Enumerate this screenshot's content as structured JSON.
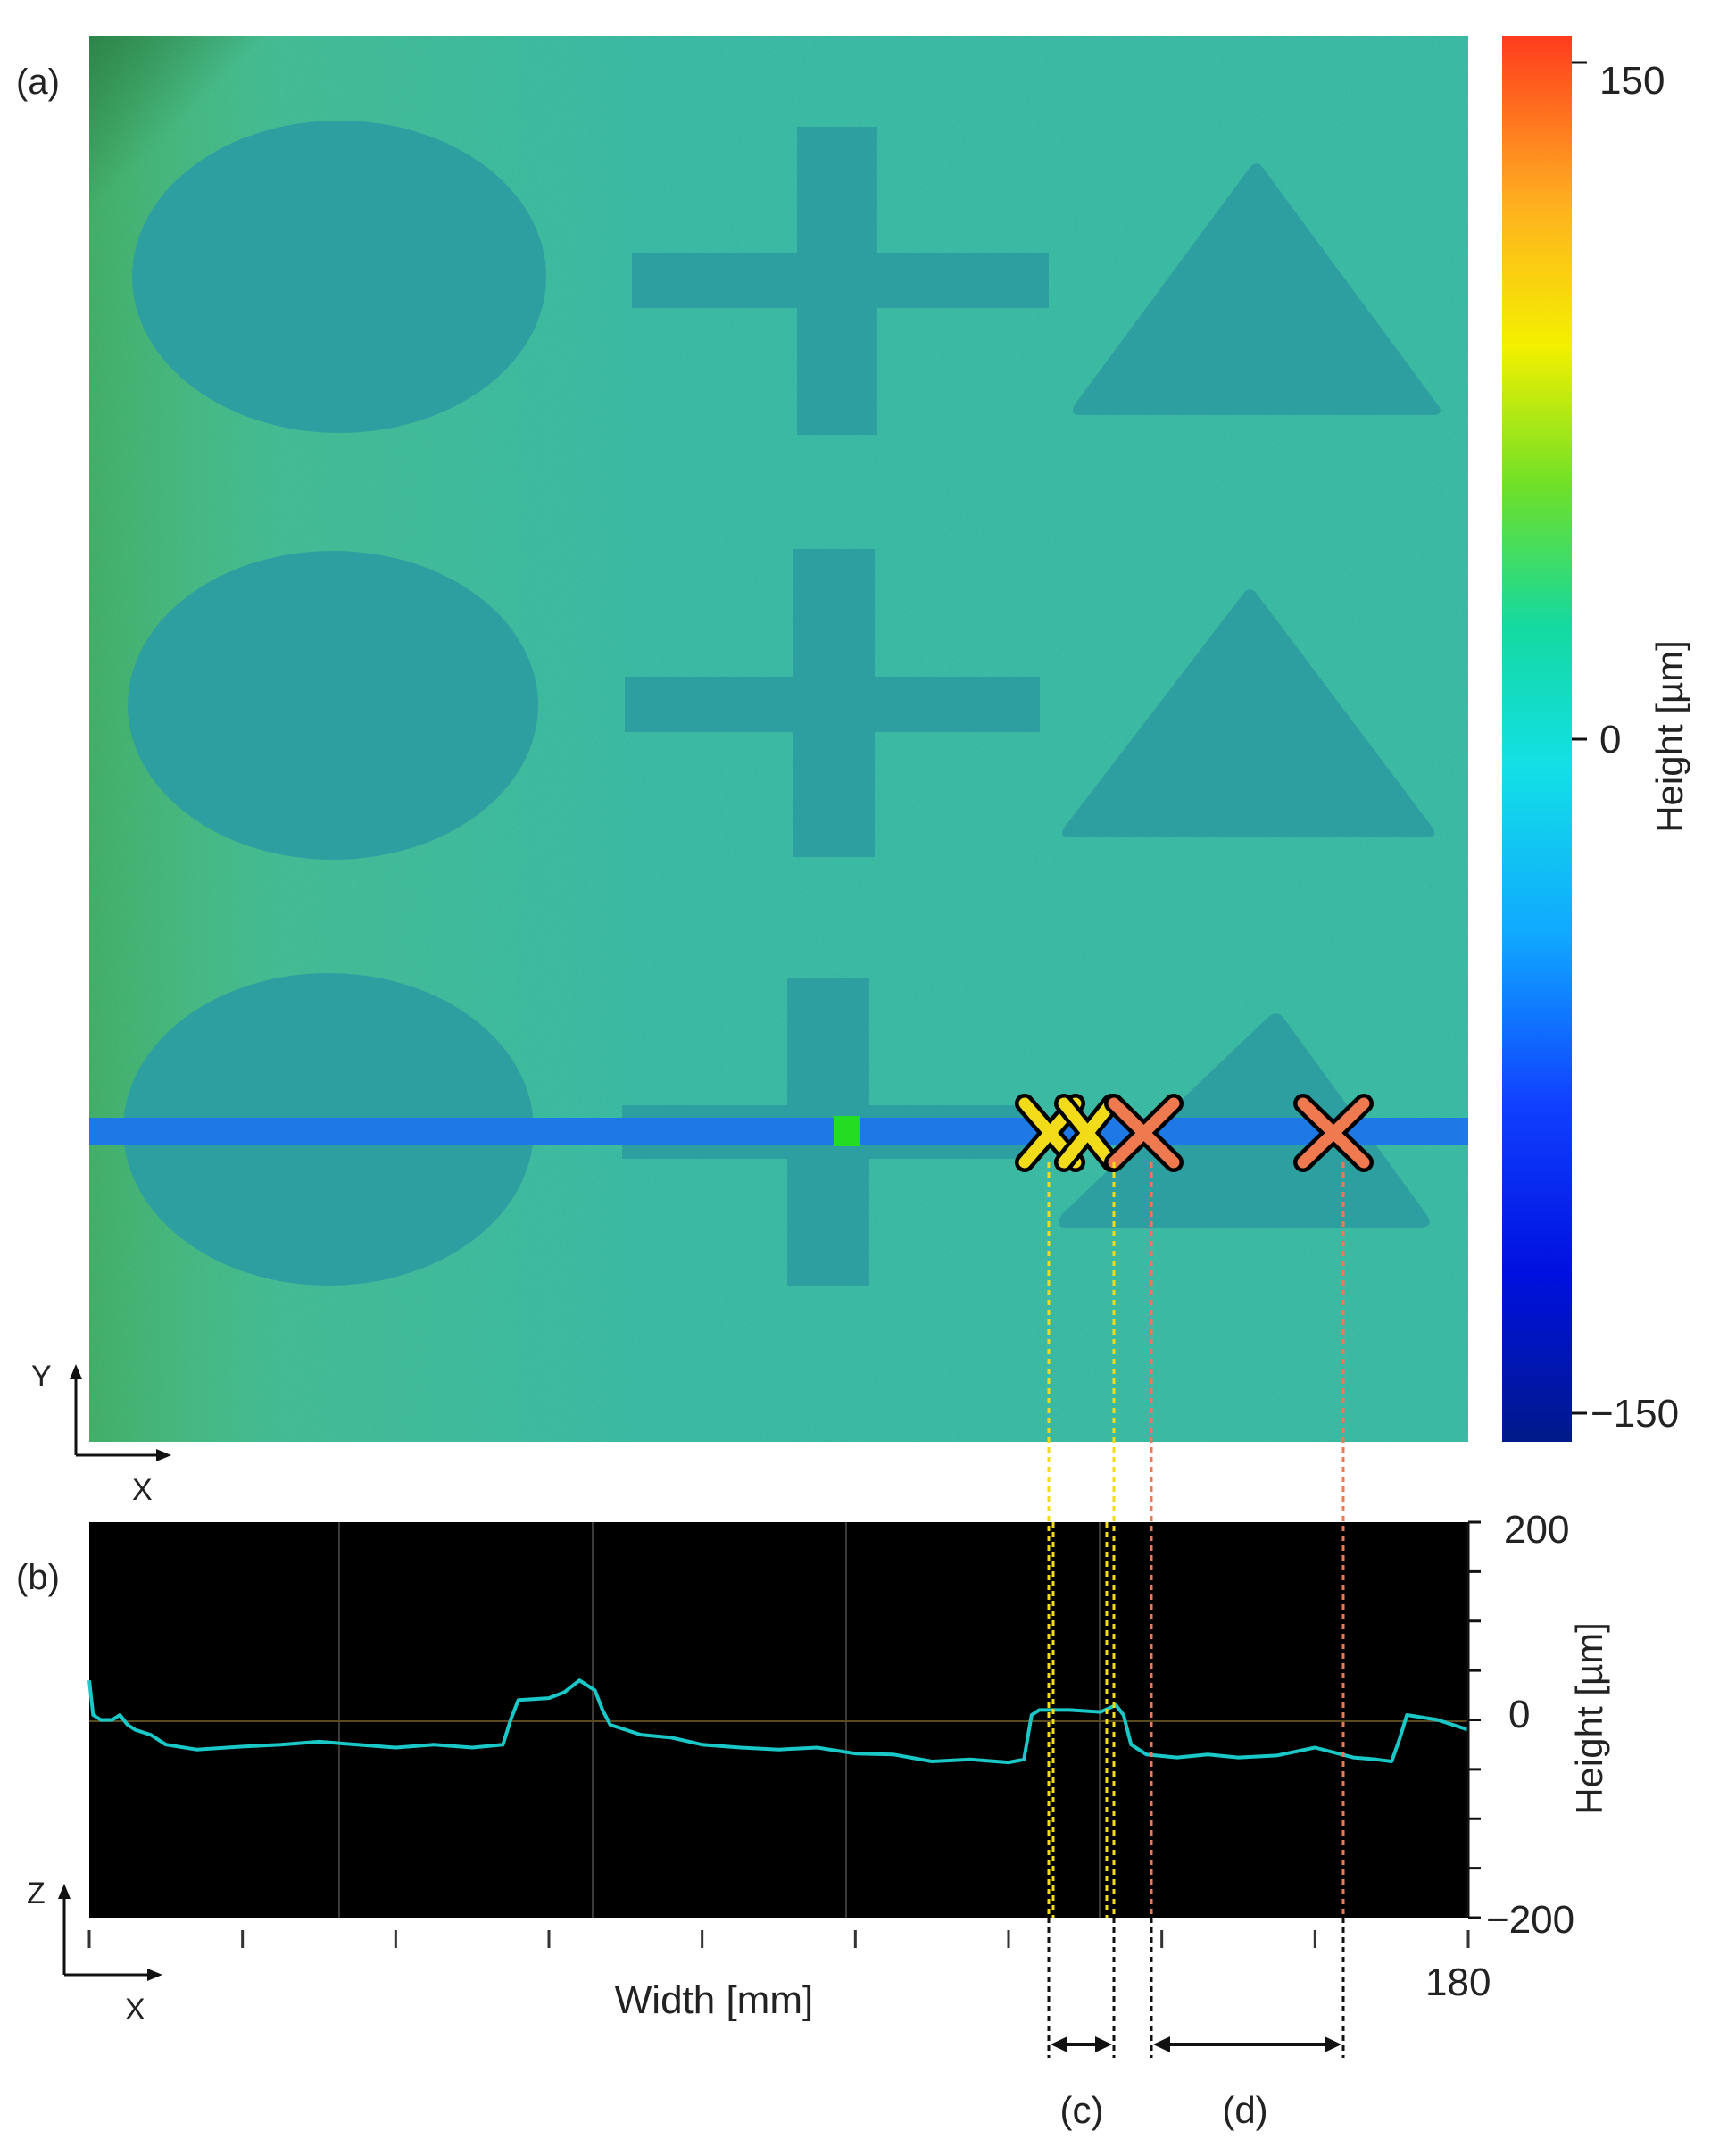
{
  "panel_a": {
    "label": "(a)",
    "axis_y": "Y",
    "axis_x": "X",
    "colorbar": {
      "label": "Height [µm]",
      "ticks": [
        "150",
        "0",
        "−150"
      ],
      "tick_values": [
        150,
        0,
        -150
      ],
      "range": [
        -150,
        150
      ],
      "colors": [
        "#ff3b1e",
        "#ffb020",
        "#f4f000",
        "#6fe028",
        "#14d9a0",
        "#12e0e6",
        "#10a8ff",
        "#1040ff",
        "#0010e0",
        "#001a8a"
      ]
    }
  },
  "panel_b": {
    "label": "(b)",
    "axis_z": "Z",
    "axis_x": "X",
    "xlabel": "Width [mm]",
    "x_end_tick": "180",
    "ylabel": "Height [µm]",
    "y_ticks": [
      "200",
      "0",
      "−200"
    ],
    "span_labels": [
      "(c)",
      "(d)"
    ]
  },
  "colors": {
    "background_plot": "#000000",
    "profile_line": "#1ac8c8",
    "scan_line": "#1e78e6",
    "yellow_marker": "#f2dc1a",
    "orange_marker": "#f07a50",
    "green_marker": "#22dd22"
  },
  "chart_data": [
    {
      "type": "heatmap",
      "description_source": "panel (a)",
      "colorbar_range": [
        -150,
        150
      ],
      "ylabel": "Height [µm]"
    },
    {
      "type": "line",
      "xlabel": "Width [mm]",
      "ylabel": "Height [µm]",
      "xlim": [
        0,
        180
      ],
      "ylim": [
        -200,
        200
      ],
      "grid": false,
      "series": [
        {
          "x": [
            0,
            0.5,
            1.5,
            3,
            4,
            5,
            6,
            8,
            10,
            14,
            20,
            25,
            30,
            35,
            40,
            45,
            50,
            54,
            55,
            56,
            60,
            62,
            64,
            66,
            67,
            68,
            72,
            76,
            80,
            85,
            90,
            95,
            100,
            105,
            110,
            115,
            120,
            122,
            123,
            124,
            128,
            132,
            134,
            135,
            136,
            138,
            142,
            146,
            150,
            155,
            160,
            165,
            168,
            170,
            171,
            172,
            176,
            180
          ],
          "y": [
            40,
            5,
            0,
            0,
            5,
            -5,
            -10,
            -15,
            -25,
            -30,
            -27,
            -25,
            -22,
            -25,
            -28,
            -25,
            -28,
            -25,
            0,
            20,
            22,
            28,
            40,
            30,
            10,
            -5,
            -15,
            -18,
            -25,
            -28,
            -30,
            -28,
            -34,
            -35,
            -42,
            -40,
            -43,
            -40,
            5,
            10,
            10,
            8,
            15,
            5,
            -25,
            -35,
            -38,
            -35,
            -38,
            -36,
            -28,
            -38,
            -40,
            -42,
            -20,
            5,
            0,
            -10
          ]
        }
      ]
    }
  ]
}
